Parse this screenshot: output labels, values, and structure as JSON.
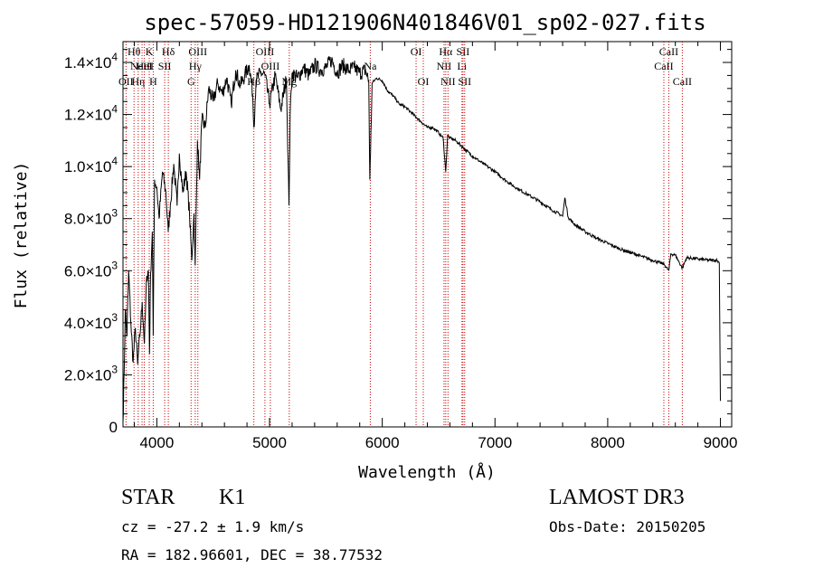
{
  "chart_data": {
    "type": "line",
    "title": "spec-57059-HD121906N401846V01_sp02-027.fits",
    "xlabel": "Wavelength (Å)",
    "ylabel": "Flux (relative)",
    "xlim": [
      3700,
      9100
    ],
    "ylim": [
      0,
      14800
    ],
    "x_ticks": [
      4000,
      5000,
      6000,
      7000,
      8000,
      9000
    ],
    "x_tick_labels": [
      "4000",
      "5000",
      "6000",
      "7000",
      "8000",
      "9000"
    ],
    "y_ticks": [
      {
        "value": 0,
        "mantissa": "0",
        "exp": ""
      },
      {
        "value": 2000,
        "mantissa": "2.0×10",
        "exp": "3"
      },
      {
        "value": 4000,
        "mantissa": "4.0×10",
        "exp": "3"
      },
      {
        "value": 6000,
        "mantissa": "6.0×10",
        "exp": "3"
      },
      {
        "value": 8000,
        "mantissa": "8.0×10",
        "exp": "3"
      },
      {
        "value": 10000,
        "mantissa": "1.0×10",
        "exp": "4"
      },
      {
        "value": 12000,
        "mantissa": "1.2×10",
        "exp": "4"
      },
      {
        "value": 14000,
        "mantissa": "1.4×10",
        "exp": "4"
      }
    ],
    "series": [
      {
        "name": "spectrum",
        "x": [
          3700,
          3710,
          3720,
          3735,
          3750,
          3770,
          3790,
          3810,
          3830,
          3850,
          3870,
          3890,
          3910,
          3925,
          3935,
          3945,
          3960,
          3968,
          3980,
          4000,
          4020,
          4050,
          4080,
          4101,
          4120,
          4150,
          4180,
          4200,
          4230,
          4260,
          4290,
          4310,
          4330,
          4340,
          4360,
          4380,
          4400,
          4430,
          4460,
          4500,
          4540,
          4580,
          4620,
          4660,
          4700,
          4740,
          4780,
          4820,
          4850,
          4861,
          4880,
          4920,
          4960,
          5000,
          5050,
          5100,
          5150,
          5172,
          5183,
          5200,
          5250,
          5300,
          5350,
          5400,
          5450,
          5500,
          5550,
          5600,
          5650,
          5700,
          5750,
          5800,
          5850,
          5880,
          5890,
          5896,
          5910,
          5950,
          6000,
          6050,
          6100,
          6150,
          6200,
          6250,
          6300,
          6350,
          6400,
          6450,
          6500,
          6540,
          6563,
          6580,
          6600,
          6650,
          6700,
          6750,
          6800,
          6850,
          6900,
          6950,
          7000,
          7100,
          7200,
          7300,
          7400,
          7500,
          7600,
          7620,
          7650,
          7700,
          7800,
          7900,
          8000,
          8100,
          8200,
          8300,
          8400,
          8500,
          8542,
          8560,
          8600,
          8662,
          8700,
          8800,
          8900,
          8970,
          8990,
          9000
        ],
        "values": [
          200,
          2000,
          4500,
          3500,
          6000,
          4000,
          2500,
          3800,
          2400,
          3500,
          4800,
          3200,
          5800,
          6000,
          2800,
          5900,
          7500,
          3500,
          9500,
          9200,
          8000,
          9800,
          9000,
          7500,
          8500,
          10100,
          8500,
          10500,
          9000,
          9800,
          8200,
          6400,
          8200,
          6200,
          11000,
          9500,
          11800,
          11500,
          13000,
          12500,
          13200,
          12800,
          13400,
          12400,
          13700,
          13100,
          13500,
          13900,
          12800,
          11500,
          13300,
          13600,
          13500,
          12400,
          13500,
          12200,
          13400,
          8500,
          12000,
          13600,
          13400,
          13800,
          13500,
          13900,
          13700,
          13800,
          14100,
          13600,
          13900,
          13700,
          13800,
          13600,
          13700,
          13300,
          9500,
          10500,
          13200,
          13400,
          13300,
          12900,
          12700,
          12400,
          12300,
          12100,
          11900,
          11700,
          11500,
          11500,
          11300,
          11100,
          9800,
          11200,
          11100,
          11000,
          10800,
          10600,
          10400,
          10250,
          10100,
          9950,
          9800,
          9450,
          9150,
          8900,
          8650,
          8350,
          8100,
          8800,
          8050,
          7800,
          7500,
          7250,
          7050,
          6850,
          6700,
          6550,
          6400,
          6250,
          6000,
          6650,
          6600,
          6100,
          6500,
          6450,
          6400,
          6400,
          6300,
          1000
        ]
      }
    ],
    "line_markers": [
      {
        "wavelength": 3727,
        "row": 2,
        "label": "OII"
      },
      {
        "wavelength": 3798,
        "row": 0,
        "label": "Hθ"
      },
      {
        "wavelength": 3835,
        "row": 2,
        "label": "Hη"
      },
      {
        "wavelength": 3869,
        "row": 1,
        "label": "NeIII"
      },
      {
        "wavelength": 3889,
        "row": 1,
        "label": "HeI"
      },
      {
        "wavelength": 3933,
        "row": 0,
        "label": "K"
      },
      {
        "wavelength": 3968,
        "row": 2,
        "label": "H"
      },
      {
        "wavelength": 4070,
        "row": 1,
        "label": "SII"
      },
      {
        "wavelength": 4102,
        "row": 0,
        "label": "Hδ"
      },
      {
        "wavelength": 4304,
        "row": 2,
        "label": "G"
      },
      {
        "wavelength": 4341,
        "row": 1,
        "label": "Hγ"
      },
      {
        "wavelength": 4364,
        "row": 0,
        "label": "OIII"
      },
      {
        "wavelength": 4861,
        "row": 2,
        "label": "Hβ"
      },
      {
        "wavelength": 4959,
        "row": 0,
        "label": "OIII"
      },
      {
        "wavelength": 5007,
        "row": 1,
        "label": "OIII"
      },
      {
        "wavelength": 5175,
        "row": 2,
        "label": "Mg"
      },
      {
        "wavelength": 5894,
        "row": 1,
        "label": "Na"
      },
      {
        "wavelength": 6300,
        "row": 0,
        "label": "OI"
      },
      {
        "wavelength": 6364,
        "row": 2,
        "label": "OI"
      },
      {
        "wavelength": 6548,
        "row": 1,
        "label": "NII"
      },
      {
        "wavelength": 6563,
        "row": 0,
        "label": "Hα"
      },
      {
        "wavelength": 6583,
        "row": 2,
        "label": "NII"
      },
      {
        "wavelength": 6707,
        "row": 1,
        "label": "Li"
      },
      {
        "wavelength": 6716,
        "row": 0,
        "label": "SII"
      },
      {
        "wavelength": 6731,
        "row": 2,
        "label": "SII"
      },
      {
        "wavelength": 8498,
        "row": 1,
        "label": "CaII"
      },
      {
        "wavelength": 8542,
        "row": 0,
        "label": "CaII"
      },
      {
        "wavelength": 8662,
        "row": 2,
        "label": "CaII"
      }
    ],
    "grid": false,
    "legend": "none"
  },
  "info": {
    "object_type": "STAR",
    "subclass": "K1",
    "redshift": "cz = -27.2 ± 1.9 km/s",
    "coordinates": "RA = 182.96601, DEC =  38.77532",
    "survey": "LAMOST DR3",
    "obs_date": "Obs-Date: 20150205"
  },
  "colors": {
    "spectrum": "#000000",
    "line_marker": "#cc0000",
    "axes": "#000000"
  }
}
